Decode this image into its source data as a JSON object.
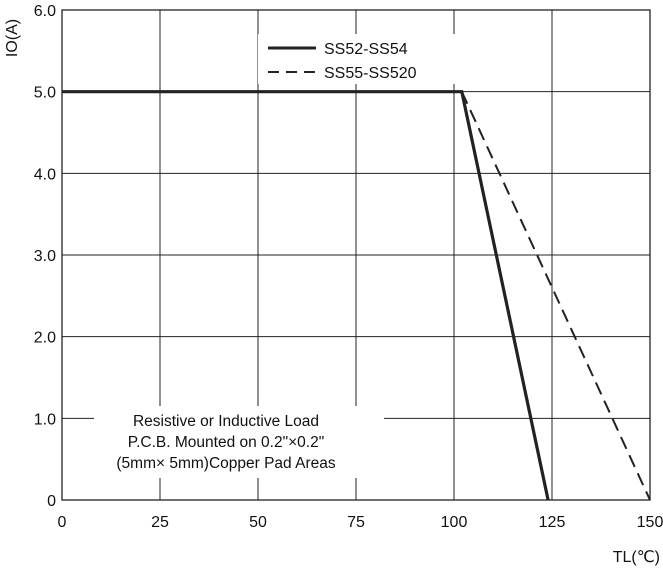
{
  "chart_data": {
    "type": "line",
    "xlabel": "TL(℃)",
    "ylabel": "IO(A)",
    "xlim": [
      0,
      150
    ],
    "ylim": [
      0,
      6
    ],
    "x_ticks": [
      "0",
      "25",
      "50",
      "75",
      "100",
      "125",
      "150"
    ],
    "y_ticks": [
      "0",
      "1.0",
      "2.0",
      "3.0",
      "4.0",
      "5.0",
      "6.0"
    ],
    "grid": true,
    "legend_position": "top-center",
    "series": [
      {
        "name": "SS52-SS54",
        "style": "solid",
        "color": "#222222",
        "points": [
          [
            0,
            5.0
          ],
          [
            102,
            5.0
          ],
          [
            124,
            0
          ]
        ]
      },
      {
        "name": "SS55-SS520",
        "style": "dashed",
        "color": "#222222",
        "points": [
          [
            0,
            5.0
          ],
          [
            102,
            5.0
          ],
          [
            150,
            0
          ]
        ]
      }
    ],
    "annotation": [
      "Resistive or Inductive Load",
      "P.C.B. Mounted on 0.2\"×0.2\"",
      "(5mm× 5mm)Copper Pad Areas"
    ]
  }
}
